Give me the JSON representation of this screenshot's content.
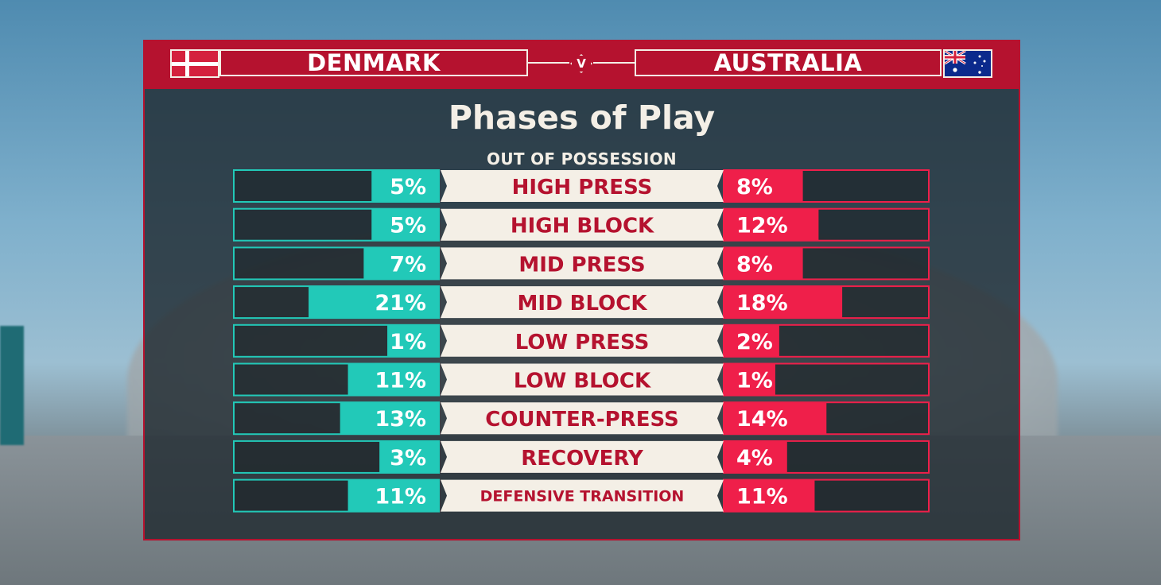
{
  "match": {
    "home_team": "DENMARK",
    "away_team": "AUSTRALIA",
    "versus": "V"
  },
  "colors": {
    "home": "#22c9b8",
    "away": "#ef1f4a",
    "header": "#b5122f",
    "label_bg": "#f4efe6",
    "label_text": "#b5122f"
  },
  "icons": {
    "home_flag": "denmark-flag-icon",
    "away_flag": "australia-flag-icon"
  },
  "chart_data": {
    "type": "bar",
    "title": "Phases of Play",
    "subtitle": "OUT OF POSSESSION",
    "categories": [
      "HIGH PRESS",
      "HIGH BLOCK",
      "MID PRESS",
      "MID BLOCK",
      "LOW PRESS",
      "LOW BLOCK",
      "COUNTER-PRESS",
      "RECOVERY",
      "DEFENSIVE TRANSITION"
    ],
    "series": [
      {
        "name": "DENMARK",
        "values": [
          5,
          5,
          7,
          21,
          1,
          11,
          13,
          3,
          11
        ],
        "labels": [
          "5%",
          "5%",
          "7%",
          "21%",
          "1%",
          "11%",
          "13%",
          "3%",
          "11%"
        ]
      },
      {
        "name": "AUSTRALIA",
        "values": [
          8,
          12,
          8,
          18,
          2,
          1,
          14,
          4,
          11
        ],
        "labels": [
          "8%",
          "12%",
          "8%",
          "18%",
          "2%",
          "1%",
          "14%",
          "4%",
          "11%"
        ]
      }
    ],
    "unit": "%",
    "layout": "diverging"
  }
}
